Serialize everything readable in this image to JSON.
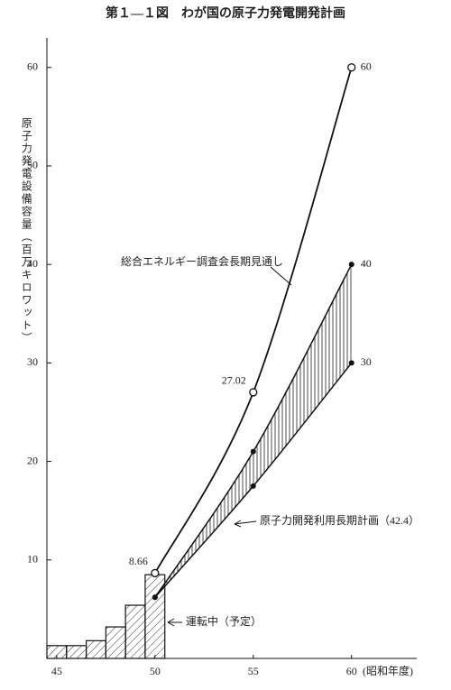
{
  "chart_data": {
    "type": "line",
    "title": "第１—１図　わが国の原子力発電開発計画",
    "y_label": "原子力発電設備容量（百万キロワット）",
    "x_label": "(昭和年度)",
    "xlim": [
      44.5,
      63.5
    ],
    "xticks": [
      45,
      50,
      55,
      60
    ],
    "ylim": [
      0,
      63
    ],
    "yticks": [
      10,
      20,
      30,
      40,
      50,
      60
    ],
    "bars": {
      "name": "運転中（予定）",
      "bins": [
        44.5,
        45.5,
        46.5,
        47.5,
        48.5,
        49.5,
        50.5
      ],
      "values": [
        1.3,
        1.3,
        1.8,
        3.2,
        5.4,
        8.5
      ]
    },
    "series": [
      {
        "name": "総合エネルギー調査会長期見通し",
        "x": [
          50,
          55,
          60
        ],
        "values": [
          8.66,
          27.02,
          60
        ],
        "color": "#111"
      },
      {
        "name": "原子力開発利用長期計画（42.4）",
        "x": [
          50,
          55,
          60
        ],
        "values": [
          6.2,
          21,
          40
        ],
        "lower": [
          6.2,
          17.5,
          30
        ],
        "color": "#111"
      }
    ]
  }
}
